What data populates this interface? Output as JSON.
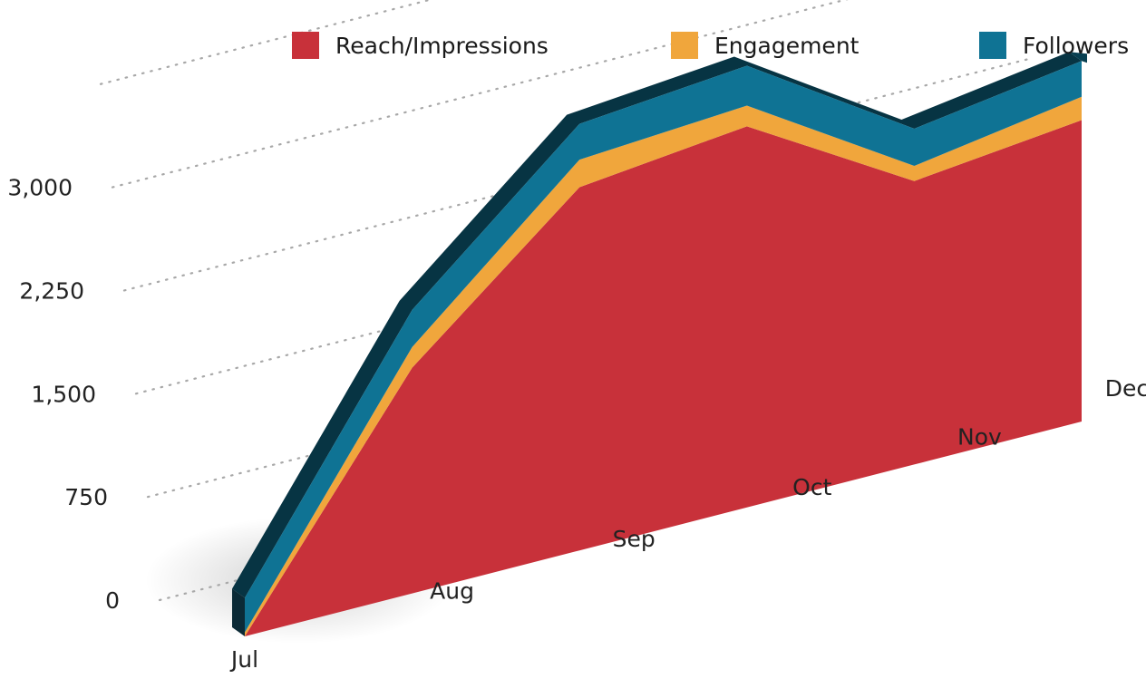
{
  "chart_data": {
    "type": "area",
    "stacked": true,
    "three_d": true,
    "categories": [
      "Jul",
      "Aug",
      "Sep",
      "Oct",
      "Nov",
      "Dec"
    ],
    "series": [
      {
        "name": "Reach/Impressions",
        "color": "#c8313a",
        "values": [
          0,
          1640,
          2640,
          2770,
          2060,
          2190
        ]
      },
      {
        "name": "Engagement",
        "color": "#f0a63c",
        "values": [
          30,
          150,
          200,
          150,
          110,
          170
        ]
      },
      {
        "name": "Followers",
        "color": "#0f7394",
        "values": [
          250,
          270,
          260,
          290,
          270,
          260
        ]
      }
    ],
    "y_ticks": [
      "0",
      "750",
      "1,500",
      "2,250",
      "3,000"
    ],
    "ylim": [
      0,
      3750
    ],
    "grid": true,
    "legend_position": "top"
  }
}
